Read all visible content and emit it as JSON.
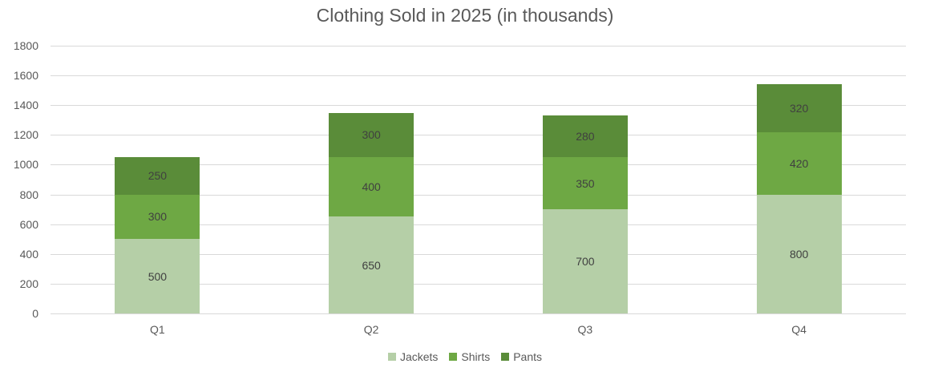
{
  "chart_data": {
    "type": "bar",
    "stacked": true,
    "title": "Clothing Sold in 2025 (in thousands)",
    "xlabel": "",
    "ylabel": "",
    "categories": [
      "Q1",
      "Q2",
      "Q3",
      "Q4"
    ],
    "series": [
      {
        "name": "Jackets",
        "color": "#b5cfa7",
        "values": [
          500,
          650,
          700,
          800
        ]
      },
      {
        "name": "Shirts",
        "color": "#6ea844",
        "values": [
          300,
          400,
          350,
          420
        ]
      },
      {
        "name": "Pants",
        "color": "#5a8c39",
        "values": [
          250,
          300,
          280,
          320
        ]
      }
    ],
    "ylim": [
      0,
      1800
    ],
    "yticks": [
      0,
      200,
      400,
      600,
      800,
      1000,
      1200,
      1400,
      1600,
      1800
    ],
    "grid": true,
    "data_labels": true,
    "legend_position": "bottom"
  }
}
